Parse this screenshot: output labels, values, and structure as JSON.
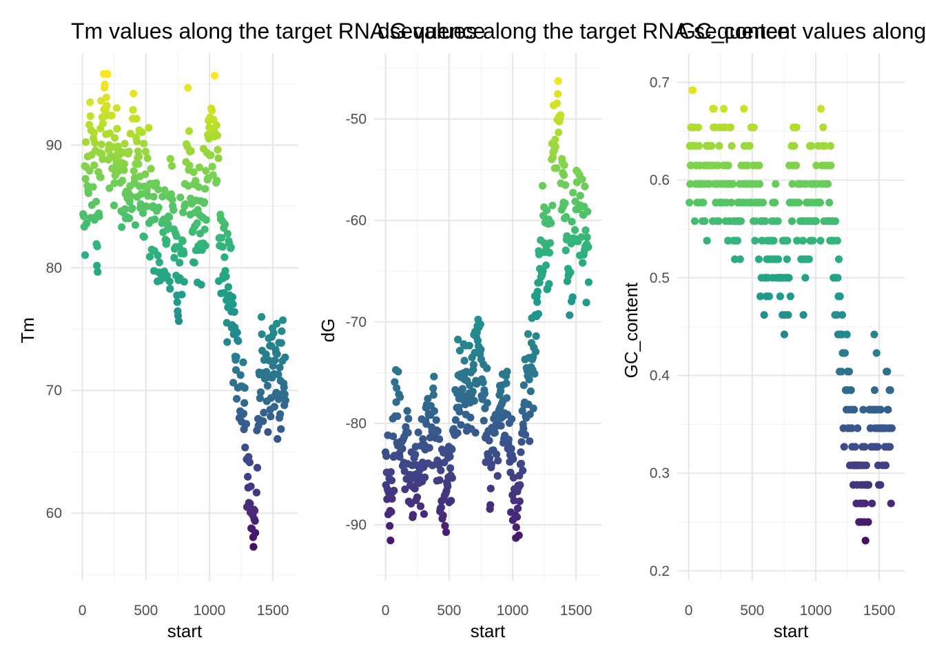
{
  "figure": {
    "background": "#ffffff"
  },
  "colormap": {
    "name": "viridis",
    "stops": [
      "#440154",
      "#482878",
      "#3e4989",
      "#31688e",
      "#26828e",
      "#1f9e89",
      "#35b779",
      "#6ece58",
      "#b5de2b",
      "#fde725"
    ]
  },
  "chart_data": [
    {
      "type": "scatter",
      "title": "Tm values along the target RNA sequence",
      "xlabel": "start",
      "ylabel": "Tm",
      "xlim": [
        -90,
        1700
      ],
      "ylim": [
        54.5,
        97.5
      ],
      "xticks": [
        0,
        500,
        1000,
        1500
      ],
      "yticks": [
        60,
        70,
        80,
        90
      ],
      "grid": true,
      "legend": "none",
      "color_by": "y",
      "color_range": [
        55.5,
        95.8
      ],
      "trend": [
        [
          0,
          83
        ],
        [
          40,
          88
        ],
        [
          80,
          87
        ],
        [
          120,
          84
        ],
        [
          170,
          93
        ],
        [
          220,
          91
        ],
        [
          260,
          89
        ],
        [
          300,
          88
        ],
        [
          340,
          85
        ],
        [
          400,
          89
        ],
        [
          440,
          87
        ],
        [
          500,
          86
        ],
        [
          540,
          85
        ],
        [
          580,
          83
        ],
        [
          620,
          81
        ],
        [
          660,
          82
        ],
        [
          700,
          84
        ],
        [
          740,
          79
        ],
        [
          780,
          80
        ],
        [
          830,
          88
        ],
        [
          870,
          86
        ],
        [
          910,
          82
        ],
        [
          960,
          86
        ],
        [
          1000,
          91
        ],
        [
          1040,
          92
        ],
        [
          1080,
          84
        ],
        [
          1120,
          80
        ],
        [
          1170,
          79
        ],
        [
          1210,
          72
        ],
        [
          1260,
          69
        ],
        [
          1300,
          65
        ],
        [
          1340,
          60
        ],
        [
          1370,
          63
        ],
        [
          1410,
          72
        ],
        [
          1460,
          71
        ],
        [
          1500,
          73
        ],
        [
          1560,
          71
        ],
        [
          1600,
          72
        ]
      ],
      "spread": 3.6,
      "xmax": 1600,
      "seed": 7
    },
    {
      "type": "scatter",
      "title": "dG values along the target RNA sequence",
      "xlabel": "start",
      "ylabel": "dG",
      "xlim": [
        -90,
        1700
      ],
      "ylim": [
        -95.5,
        -43.5
      ],
      "xticks": [
        0,
        500,
        1000,
        1500
      ],
      "yticks": [
        -90,
        -80,
        -70,
        -60,
        -50
      ],
      "grid": true,
      "legend": "none",
      "color_by": "y",
      "color_range": [
        -94.8,
        -45.2
      ],
      "trend": [
        [
          0,
          -84
        ],
        [
          40,
          -88
        ],
        [
          80,
          -79
        ],
        [
          120,
          -81
        ],
        [
          170,
          -83
        ],
        [
          220,
          -86
        ],
        [
          260,
          -84
        ],
        [
          300,
          -82
        ],
        [
          340,
          -79
        ],
        [
          380,
          -78
        ],
        [
          420,
          -84
        ],
        [
          460,
          -86
        ],
        [
          500,
          -84
        ],
        [
          540,
          -82
        ],
        [
          580,
          -77
        ],
        [
          620,
          -75
        ],
        [
          660,
          -76
        ],
        [
          700,
          -75
        ],
        [
          740,
          -73
        ],
        [
          780,
          -79
        ],
        [
          830,
          -84
        ],
        [
          870,
          -81
        ],
        [
          910,
          -77
        ],
        [
          960,
          -80
        ],
        [
          1010,
          -88
        ],
        [
          1050,
          -88
        ],
        [
          1080,
          -79
        ],
        [
          1120,
          -76
        ],
        [
          1170,
          -74
        ],
        [
          1210,
          -65
        ],
        [
          1250,
          -61
        ],
        [
          1290,
          -62
        ],
        [
          1330,
          -53
        ],
        [
          1360,
          -49
        ],
        [
          1410,
          -58
        ],
        [
          1450,
          -67
        ],
        [
          1500,
          -57
        ],
        [
          1560,
          -61
        ],
        [
          1600,
          -62
        ]
      ],
      "spread": 3.6,
      "xmax": 1600,
      "seed": 11
    },
    {
      "type": "scatter",
      "title": "GC_content values along the target RNA sequence",
      "xlabel": "start",
      "ylabel": "GC_content",
      "xlim": [
        -90,
        1700
      ],
      "ylim": [
        0.19,
        0.73
      ],
      "xticks": [
        0,
        500,
        1000,
        1500
      ],
      "yticks": [
        0.2,
        0.3,
        0.4,
        0.5,
        0.6,
        0.7
      ],
      "grid": true,
      "legend": "none",
      "color_by": "y",
      "color_range": [
        0.212,
        0.712
      ],
      "levels": [
        0.212,
        0.231,
        0.25,
        0.269,
        0.288,
        0.308,
        0.327,
        0.346,
        0.365,
        0.385,
        0.404,
        0.423,
        0.442,
        0.462,
        0.481,
        0.5,
        0.519,
        0.538,
        0.558,
        0.577,
        0.596,
        0.615,
        0.635,
        0.654,
        0.673,
        0.692,
        0.712
      ],
      "trend": [
        [
          0,
          0.61
        ],
        [
          40,
          0.64
        ],
        [
          80,
          0.6
        ],
        [
          120,
          0.59
        ],
        [
          170,
          0.63
        ],
        [
          220,
          0.61
        ],
        [
          260,
          0.61
        ],
        [
          300,
          0.6
        ],
        [
          340,
          0.58
        ],
        [
          380,
          0.53
        ],
        [
          420,
          0.62
        ],
        [
          460,
          0.61
        ],
        [
          500,
          0.61
        ],
        [
          540,
          0.59
        ],
        [
          580,
          0.52
        ],
        [
          620,
          0.52
        ],
        [
          660,
          0.53
        ],
        [
          700,
          0.53
        ],
        [
          740,
          0.49
        ],
        [
          780,
          0.52
        ],
        [
          830,
          0.6
        ],
        [
          870,
          0.58
        ],
        [
          910,
          0.52
        ],
        [
          960,
          0.57
        ],
        [
          1010,
          0.6
        ],
        [
          1050,
          0.62
        ],
        [
          1080,
          0.6
        ],
        [
          1120,
          0.58
        ],
        [
          1170,
          0.5
        ],
        [
          1210,
          0.4
        ],
        [
          1250,
          0.38
        ],
        [
          1290,
          0.36
        ],
        [
          1330,
          0.31
        ],
        [
          1360,
          0.3
        ],
        [
          1410,
          0.3
        ],
        [
          1460,
          0.38
        ],
        [
          1500,
          0.33
        ],
        [
          1560,
          0.35
        ],
        [
          1600,
          0.35
        ]
      ],
      "spread": 0.045,
      "xmax": 1600,
      "seed": 23
    }
  ]
}
